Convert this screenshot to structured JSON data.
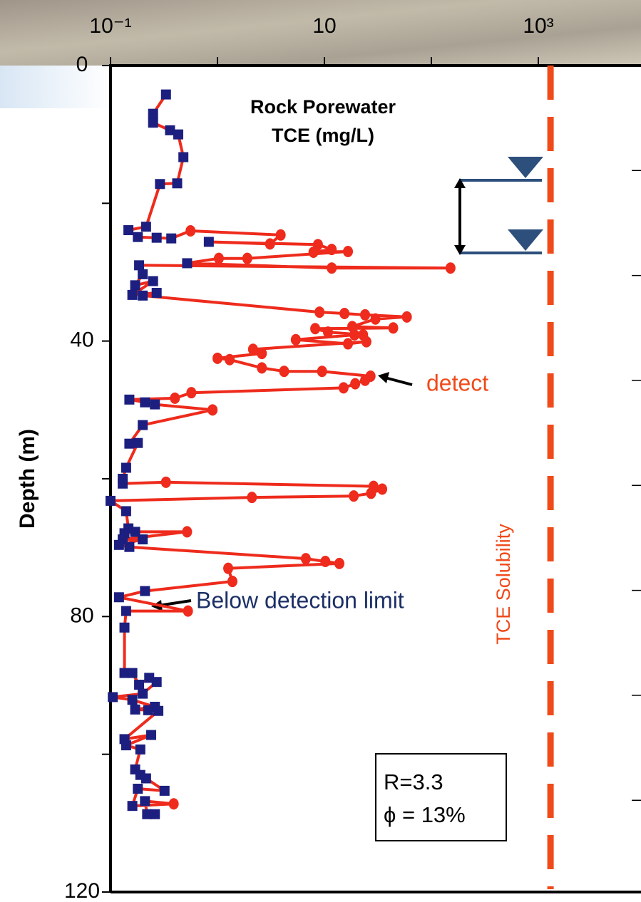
{
  "chart_data": {
    "type": "line",
    "title": [
      "Rock  Porewater",
      "TCE (mg/L)"
    ],
    "y_label": "Depth  (m)",
    "x_log": true,
    "y_inverted": true,
    "xlim": [
      0.1,
      10000
    ],
    "xticks": [
      {
        "value": 0.1,
        "label": "10⁻¹"
      },
      10,
      {
        "value": 1000,
        "label": "10³"
      }
    ],
    "xminor_ticks": [
      1,
      100
    ],
    "ylim": [
      0,
      120
    ],
    "yticks": [
      0,
      40,
      80,
      120
    ],
    "yminor_ticks": [
      20,
      60,
      100
    ],
    "y2lim": [
      0,
      393.7
    ],
    "y2ticks": [
      50,
      100,
      150,
      200,
      250,
      300,
      350
    ],
    "y2_tick_labels": false,
    "detect_color": "#ee2b1c",
    "nondetect_color": "#1c1f7f",
    "series": [
      {
        "color": "#ee2b1c",
        "x": [
          0.33,
          0.25,
          0.25,
          0.36,
          0.43,
          0.48,
          0.42,
          0.29,
          0.215,
          0.147,
          0.18,
          0.27,
          0.37,
          0.56,
          3.9,
          3.1,
          0.83,
          8.7,
          11.7,
          7.9,
          16.6,
          1.9,
          1.03,
          0.52,
          11.7,
          151,
          0.185,
          0.2,
          0.17,
          0.25,
          0.16,
          0.27,
          0.2,
          9.0,
          15.4,
          24,
          59,
          30,
          18.2,
          44,
          8.2,
          10.8,
          23,
          19.1,
          5.4,
          16.6,
          24.7,
          2.15,
          2.6,
          1.0,
          1.3,
          2.6,
          4.2,
          9.5,
          27,
          24,
          19.4,
          15.1,
          0.57,
          0.4,
          0.15,
          0.21,
          0.26,
          0.9,
          0.2,
          0.15,
          0.18,
          0.14,
          0.13,
          0.13,
          0.33,
          28.8,
          34.7,
          27.3,
          18.8,
          2.1,
          0.1,
          0.14,
          0.147,
          0.135,
          0.17,
          0.52,
          0.13,
          0.2,
          0.12,
          0.15,
          6.7,
          10.2,
          13.8,
          1.26,
          1.38,
          0.21,
          0.12,
          0.53,
          0.14,
          0.135,
          0.135,
          0.16,
          0.185,
          0.23,
          0.27,
          0.2,
          0.105,
          0.16,
          0.26,
          0.17,
          0.225,
          0.28,
          0.135,
          0.24,
          0.14,
          0.19,
          0.17,
          0.19,
          0.215,
          0.32,
          0.18,
          0.16,
          0.39,
          0.21,
          0.22,
          0.26
        ],
        "y": [
          4.2,
          7.0,
          8.3,
          9.4,
          10.0,
          13.3,
          17.1,
          17.2,
          23.4,
          23.9,
          24.9,
          25.0,
          25.1,
          24.0,
          24.6,
          25.9,
          25.6,
          26.0,
          26.7,
          27.1,
          27.0,
          28.0,
          28.0,
          28.7,
          29.4,
          29.4,
          29.0,
          30.3,
          31.9,
          31.3,
          33.3,
          33.0,
          33.4,
          35.8,
          36.0,
          36.2,
          36.5,
          36.8,
          37.9,
          38.1,
          38.2,
          38.7,
          39.1,
          39.1,
          39.8,
          40.4,
          40.1,
          41.2,
          41.8,
          42.5,
          42.7,
          43.9,
          44.4,
          44.4,
          45.1,
          45.7,
          46.2,
          46.8,
          47.5,
          48.3,
          48.5,
          48.9,
          49.2,
          50.0,
          52.2,
          54.9,
          54.8,
          58.4,
          60.0,
          60.7,
          60.5,
          61.1,
          61.5,
          62.1,
          62.5,
          62.7,
          63.2,
          64.7,
          67.2,
          67.9,
          67.7,
          67.7,
          68.8,
          68.8,
          69.6,
          69.9,
          71.6,
          72.0,
          72.3,
          73.0,
          74.9,
          76.3,
          77.2,
          79.2,
          79.2,
          81.6,
          88.2,
          88.2,
          89.9,
          88.9,
          89.5,
          91.2,
          91.7,
          92.1,
          93.1,
          93.5,
          93.6,
          93.7,
          97.8,
          97.2,
          98.7,
          99.3,
          102.2,
          103.0,
          103.5,
          105.3,
          105.0,
          107.5,
          107.2,
          106.8,
          108.7,
          108.7
        ],
        "detected": [
          false,
          false,
          false,
          false,
          false,
          false,
          false,
          false,
          false,
          false,
          false,
          false,
          false,
          true,
          true,
          true,
          false,
          true,
          true,
          true,
          true,
          true,
          true,
          false,
          true,
          true,
          false,
          false,
          false,
          false,
          false,
          false,
          false,
          true,
          true,
          true,
          true,
          true,
          true,
          true,
          true,
          true,
          true,
          true,
          true,
          true,
          true,
          true,
          true,
          true,
          true,
          true,
          true,
          true,
          true,
          true,
          true,
          true,
          true,
          true,
          false,
          false,
          false,
          true,
          false,
          false,
          false,
          false,
          false,
          false,
          true,
          true,
          true,
          true,
          true,
          true,
          false,
          false,
          false,
          false,
          false,
          true,
          false,
          false,
          false,
          false,
          true,
          true,
          true,
          true,
          true,
          false,
          false,
          true,
          false,
          false,
          false,
          false,
          false,
          false,
          false,
          false,
          false,
          false,
          false,
          false,
          false,
          false,
          false,
          false,
          false,
          false,
          false,
          false,
          false,
          false,
          false,
          false,
          true,
          false,
          false,
          false
        ]
      }
    ],
    "solubility": {
      "label": "TCE  Solubility",
      "value": 1300,
      "color": "#f04a1a"
    },
    "annotations": [
      "detect",
      "Below detection limit"
    ],
    "stats": [
      "R=3.3",
      "ϕ = 13%"
    ]
  }
}
